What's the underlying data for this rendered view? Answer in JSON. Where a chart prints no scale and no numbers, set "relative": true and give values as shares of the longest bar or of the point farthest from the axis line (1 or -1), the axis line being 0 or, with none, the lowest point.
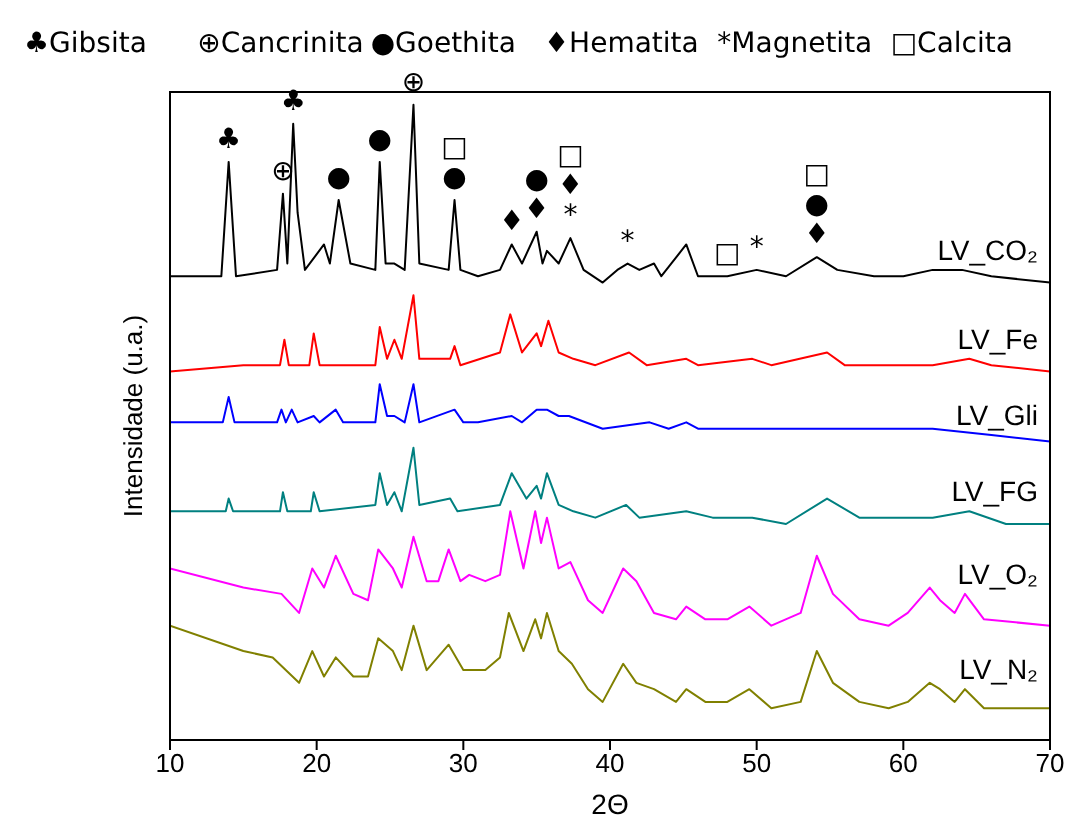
{
  "chart_data": {
    "type": "line",
    "relative": true,
    "xlabel": "2Θ",
    "ylabel": "Intensidade (u.a.)",
    "xlim": [
      10,
      70
    ],
    "xticks": [
      10,
      20,
      30,
      40,
      50,
      60,
      70
    ],
    "annotations": [
      "♣Gibsita",
      "⊕Cancrinita",
      "●Goethita",
      "♦Hematita",
      "*Magnetita",
      "□Calcita",
      {
        "text": "♣",
        "x": 14,
        "y": 0.91
      },
      {
        "text": "♣",
        "x": 18.4,
        "y": 0.97
      },
      {
        "text": "⊕",
        "x": 17.7,
        "y": 0.86
      },
      {
        "text": "⊕",
        "x": 26.6,
        "y": 1.0
      },
      {
        "text": "●",
        "x": 21.5,
        "y": 0.85
      },
      {
        "text": "●",
        "x": 24.3,
        "y": 0.91
      },
      {
        "text": "●",
        "x": 29.4,
        "y": 0.85
      },
      {
        "text": "□",
        "x": 29.4,
        "y": 0.85
      },
      {
        "text": "♦",
        "x": 33.3,
        "y": 0.78
      },
      {
        "text": "♦",
        "x": 35,
        "y": 0.8
      },
      {
        "text": "●",
        "x": 35,
        "y": 0.8
      },
      {
        "text": "*",
        "x": 37.3,
        "y": 0.79
      },
      {
        "text": "♦",
        "x": 37.3,
        "y": 0.79
      },
      {
        "text": "□",
        "x": 37.3,
        "y": 0.79
      },
      {
        "text": "*",
        "x": 41.2,
        "y": 0.75
      },
      {
        "text": "□",
        "x": 48,
        "y": 0.73
      },
      {
        "text": "*",
        "x": 50,
        "y": 0.74
      },
      {
        "text": "♦",
        "x": 54.1,
        "y": 0.76
      },
      {
        "text": "●",
        "x": 54.1,
        "y": 0.76
      },
      {
        "text": "□",
        "x": 54.1,
        "y": 0.76
      }
    ],
    "series": [
      {
        "name": "LV_CO₂",
        "color": "#000000",
        "x": [
          10,
          13.5,
          14,
          14.5,
          17.3,
          17.7,
          18.0,
          18.4,
          18.7,
          19.2,
          20.5,
          20.9,
          21.5,
          22.3,
          24,
          24.3,
          24.7,
          25.3,
          26,
          26.6,
          27,
          29,
          29.4,
          29.8,
          31,
          32.5,
          33.3,
          34,
          35,
          35.4,
          35.7,
          36.5,
          37.3,
          38.2,
          39.5,
          40.5,
          41.2,
          42,
          43,
          43.5,
          45.2,
          46,
          48,
          50,
          52,
          54.1,
          55.5,
          58,
          60,
          62,
          64,
          66,
          70
        ],
        "values": [
          0.73,
          0.73,
          0.91,
          0.73,
          0.74,
          0.86,
          0.75,
          0.97,
          0.83,
          0.74,
          0.78,
          0.75,
          0.85,
          0.75,
          0.74,
          0.91,
          0.75,
          0.75,
          0.74,
          1.0,
          0.75,
          0.74,
          0.85,
          0.74,
          0.73,
          0.74,
          0.78,
          0.75,
          0.8,
          0.75,
          0.77,
          0.75,
          0.79,
          0.74,
          0.72,
          0.74,
          0.75,
          0.74,
          0.75,
          0.73,
          0.78,
          0.73,
          0.73,
          0.74,
          0.73,
          0.76,
          0.74,
          0.73,
          0.73,
          0.74,
          0.74,
          0.73,
          0.72
        ]
      },
      {
        "name": "LV_Fe",
        "color": "#ff0000",
        "x": [
          10,
          15,
          17.5,
          17.8,
          18.1,
          19.5,
          19.8,
          20.2,
          24,
          24.3,
          24.8,
          25.3,
          25.8,
          26.6,
          27.0,
          29.1,
          29.4,
          29.8,
          32.5,
          33.2,
          34,
          35,
          35.3,
          35.8,
          36.5,
          37.5,
          39,
          41.3,
          42.5,
          45.2,
          46,
          49.7,
          51,
          54.8,
          56,
          60,
          62,
          64.5,
          66,
          70
        ],
        "values": [
          0.58,
          0.59,
          0.59,
          0.63,
          0.59,
          0.59,
          0.64,
          0.59,
          0.59,
          0.65,
          0.6,
          0.63,
          0.6,
          0.7,
          0.6,
          0.6,
          0.62,
          0.59,
          0.61,
          0.67,
          0.61,
          0.64,
          0.62,
          0.66,
          0.61,
          0.6,
          0.59,
          0.61,
          0.59,
          0.6,
          0.59,
          0.6,
          0.59,
          0.61,
          0.59,
          0.59,
          0.59,
          0.6,
          0.59,
          0.58
        ]
      },
      {
        "name": "LV_Gli",
        "color": "#0000ff",
        "x": [
          10,
          13.6,
          14,
          14.4,
          17.3,
          17.6,
          17.9,
          18.3,
          18.7,
          19.8,
          20.2,
          21.3,
          21.8,
          24,
          24.3,
          24.8,
          25.3,
          26,
          26.6,
          27,
          29.4,
          30,
          31,
          33.3,
          34,
          35,
          35.7,
          36.5,
          37.2,
          39.5,
          42.7,
          44,
          45.2,
          46,
          50,
          54,
          58,
          62,
          66,
          70
        ],
        "values": [
          0.5,
          0.5,
          0.54,
          0.5,
          0.5,
          0.52,
          0.5,
          0.52,
          0.5,
          0.51,
          0.5,
          0.52,
          0.5,
          0.5,
          0.56,
          0.51,
          0.51,
          0.5,
          0.56,
          0.5,
          0.52,
          0.5,
          0.5,
          0.51,
          0.5,
          0.52,
          0.52,
          0.51,
          0.51,
          0.49,
          0.5,
          0.49,
          0.5,
          0.49,
          0.49,
          0.49,
          0.49,
          0.49,
          0.48,
          0.47
        ]
      },
      {
        "name": "LV_FG",
        "color": "#008080",
        "x": [
          10,
          13.8,
          14,
          14.3,
          17.5,
          17.7,
          18,
          19.6,
          19.8,
          20.2,
          24,
          24.3,
          24.8,
          25.3,
          25.8,
          26.6,
          27,
          29.1,
          29.6,
          32.5,
          33.3,
          34.3,
          35,
          35.3,
          35.7,
          36.5,
          37.5,
          39,
          41.1,
          42,
          45.2,
          47,
          49.7,
          52,
          54.8,
          57,
          62,
          64.5,
          67,
          70
        ],
        "values": [
          0.36,
          0.36,
          0.38,
          0.36,
          0.36,
          0.39,
          0.36,
          0.36,
          0.39,
          0.36,
          0.37,
          0.42,
          0.37,
          0.39,
          0.36,
          0.46,
          0.37,
          0.38,
          0.36,
          0.37,
          0.42,
          0.38,
          0.4,
          0.38,
          0.42,
          0.37,
          0.36,
          0.35,
          0.37,
          0.35,
          0.36,
          0.35,
          0.35,
          0.34,
          0.38,
          0.35,
          0.35,
          0.36,
          0.34,
          0.34
        ]
      },
      {
        "name": "LV_O₂",
        "color": "#ff00ff",
        "x": [
          10,
          15,
          17.6,
          18.8,
          19.7,
          20.5,
          21.3,
          22.5,
          23.5,
          24.2,
          25.2,
          25.8,
          26.6,
          27.5,
          28.3,
          29,
          29.8,
          30.4,
          31.5,
          32.5,
          33.2,
          34.1,
          34.9,
          35.3,
          35.7,
          36.5,
          37.3,
          38.5,
          39.5,
          40.9,
          41.8,
          43,
          44.5,
          45.2,
          46.5,
          48,
          49.5,
          51,
          53,
          54.1,
          55.2,
          57,
          59,
          60.3,
          61.8,
          62.5,
          63.5,
          64.2,
          65.5,
          70
        ],
        "values": [
          0.27,
          0.24,
          0.23,
          0.2,
          0.27,
          0.24,
          0.29,
          0.23,
          0.22,
          0.3,
          0.27,
          0.24,
          0.32,
          0.25,
          0.25,
          0.3,
          0.25,
          0.26,
          0.25,
          0.26,
          0.36,
          0.27,
          0.36,
          0.31,
          0.35,
          0.27,
          0.28,
          0.22,
          0.2,
          0.27,
          0.25,
          0.2,
          0.19,
          0.21,
          0.19,
          0.19,
          0.21,
          0.18,
          0.2,
          0.29,
          0.23,
          0.19,
          0.18,
          0.2,
          0.24,
          0.22,
          0.2,
          0.23,
          0.19,
          0.18
        ]
      },
      {
        "name": "LV_N₂",
        "color": "#808000",
        "x": [
          10,
          15,
          17,
          18.8,
          19.7,
          20.5,
          21.3,
          22.5,
          23.5,
          24.2,
          25.2,
          25.8,
          26.6,
          27.5,
          29,
          30,
          31.5,
          32.5,
          33.1,
          34.1,
          34.9,
          35.3,
          35.7,
          36.5,
          37.4,
          38.5,
          39.5,
          40.9,
          41.8,
          43,
          44.5,
          45.2,
          46.5,
          48,
          49.5,
          51,
          53,
          54.1,
          55.2,
          57,
          59,
          60.3,
          61.8,
          62.5,
          63.5,
          64.2,
          65.5,
          70
        ],
        "values": [
          0.18,
          0.14,
          0.13,
          0.09,
          0.14,
          0.1,
          0.13,
          0.1,
          0.1,
          0.16,
          0.14,
          0.11,
          0.18,
          0.11,
          0.15,
          0.11,
          0.11,
          0.13,
          0.2,
          0.14,
          0.19,
          0.16,
          0.2,
          0.14,
          0.12,
          0.08,
          0.06,
          0.12,
          0.09,
          0.08,
          0.06,
          0.08,
          0.06,
          0.06,
          0.08,
          0.05,
          0.06,
          0.14,
          0.09,
          0.06,
          0.05,
          0.06,
          0.09,
          0.08,
          0.06,
          0.08,
          0.05,
          0.05
        ]
      }
    ]
  }
}
